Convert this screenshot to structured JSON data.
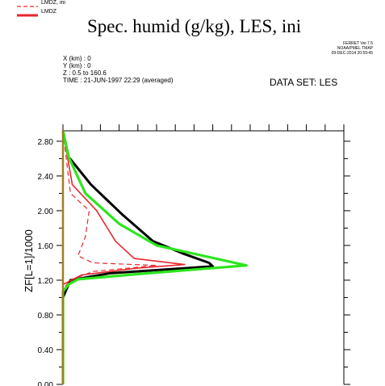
{
  "legend": [
    {
      "label": "LMDZ, ini",
      "color": "#e8262d",
      "style": "dashed"
    },
    {
      "label": "LMDZ",
      "color": "#e8262d",
      "style": "solid"
    }
  ],
  "header": {
    "title": "Spec. humid (g/kg), LES, ini",
    "info_lines": [
      "X (km) : 0",
      "Y (km) : 0",
      "Z : 0.5 to 160.6",
      "TIME : 21-JUN-1997 22:29 (averaged)"
    ],
    "ferret_lines": [
      "FERRET Ver.7.5",
      "NOAA/PMEL TMAP",
      "09-DEC-2014 20:59:45"
    ],
    "dataset": "DATA SET: LES"
  },
  "chart_data": {
    "type": "line",
    "ylabel": "ZF[L=1]/1000",
    "xlabel": "",
    "ylim": [
      0,
      2.92
    ],
    "xlim": [
      0,
      15
    ],
    "y_ticks": [
      "0.00",
      "0.40",
      "0.80",
      "1.20",
      "1.60",
      "2.00",
      "2.40",
      "2.80"
    ],
    "series": [
      {
        "color": "#000000",
        "style": "solid",
        "x": [
          0,
          0.3,
          1.5,
          3.2,
          4.8,
          6.5,
          7.8,
          8.0,
          2.5,
          0.4,
          0.2,
          0,
          0
        ],
        "y": [
          2.92,
          2.62,
          2.3,
          1.95,
          1.65,
          1.5,
          1.4,
          1.36,
          1.28,
          1.2,
          1.1,
          1.0,
          0
        ]
      },
      {
        "color": "#e8262d",
        "style": "dashed",
        "x": [
          0,
          0.4,
          1.4,
          1.2,
          0.8,
          1.6,
          5.0,
          1.6,
          0.4,
          0,
          0
        ],
        "y": [
          2.92,
          2.2,
          2.0,
          1.7,
          1.48,
          1.4,
          1.37,
          1.3,
          1.2,
          1.1,
          0
        ]
      },
      {
        "color": "#e8262d",
        "style": "solid",
        "x": [
          0,
          0.5,
          1.8,
          2.8,
          3.8,
          6.5,
          4.0,
          1.0,
          0,
          0
        ],
        "y": [
          2.92,
          2.3,
          2.0,
          1.65,
          1.45,
          1.38,
          1.34,
          1.26,
          1.15,
          0
        ]
      },
      {
        "color": "#2ee51f",
        "style": "solid",
        "x": [
          0,
          0.3,
          1.2,
          3.0,
          5.0,
          7.5,
          9.8,
          4.0,
          0.8,
          0.3,
          0,
          0
        ],
        "y": [
          2.92,
          2.62,
          2.2,
          1.85,
          1.6,
          1.48,
          1.37,
          1.27,
          1.21,
          1.15,
          1.07,
          0
        ]
      },
      {
        "color": "#a08020",
        "style": "solid",
        "x": [
          0,
          0
        ],
        "y": [
          2.92,
          0
        ]
      }
    ]
  }
}
